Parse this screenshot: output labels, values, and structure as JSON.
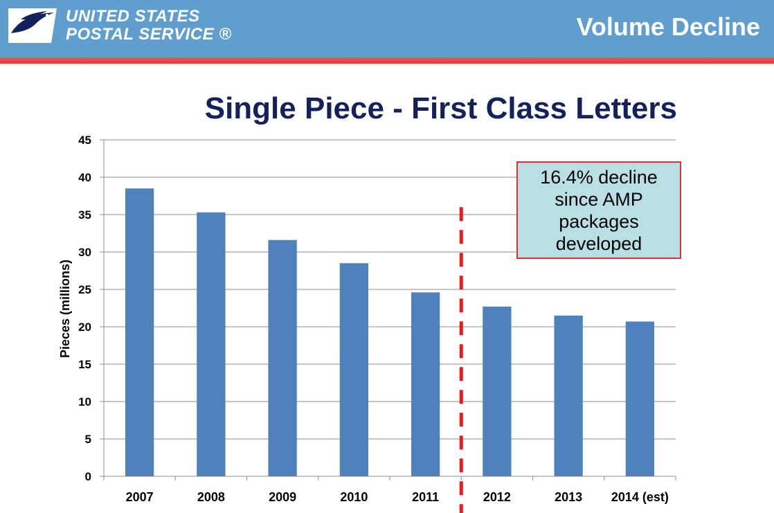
{
  "header": {
    "logo_line1": "UNITED STATES",
    "logo_line2": "POSTAL SERVICE ®",
    "title": "Volume Decline",
    "background_color": "#5f9ecf",
    "rule_color": "#e8454b"
  },
  "callout": {
    "text": "16.4% decline since AMP packages developed",
    "background_color": "#b8dfe4",
    "border_color": "#e03030"
  },
  "chart_data": {
    "type": "bar",
    "title": "Single Piece - First Class Letters",
    "xlabel": "",
    "ylabel": "Pieces (millions)",
    "categories": [
      "2007",
      "2008",
      "2009",
      "2010",
      "2011",
      "2012",
      "2013",
      "2014 (est)"
    ],
    "values": [
      38.5,
      35.3,
      31.6,
      28.5,
      24.6,
      22.7,
      21.5,
      20.7
    ],
    "ylim": [
      0,
      45
    ],
    "yticks": [
      0,
      5,
      10,
      15,
      20,
      25,
      30,
      35,
      40,
      45
    ],
    "grid": true,
    "legend": "none",
    "bar_color": "#4f81bd",
    "annotation": {
      "type": "dashed-vertical-line",
      "between": [
        "2011",
        "2012"
      ],
      "color": "#e8191f"
    }
  }
}
